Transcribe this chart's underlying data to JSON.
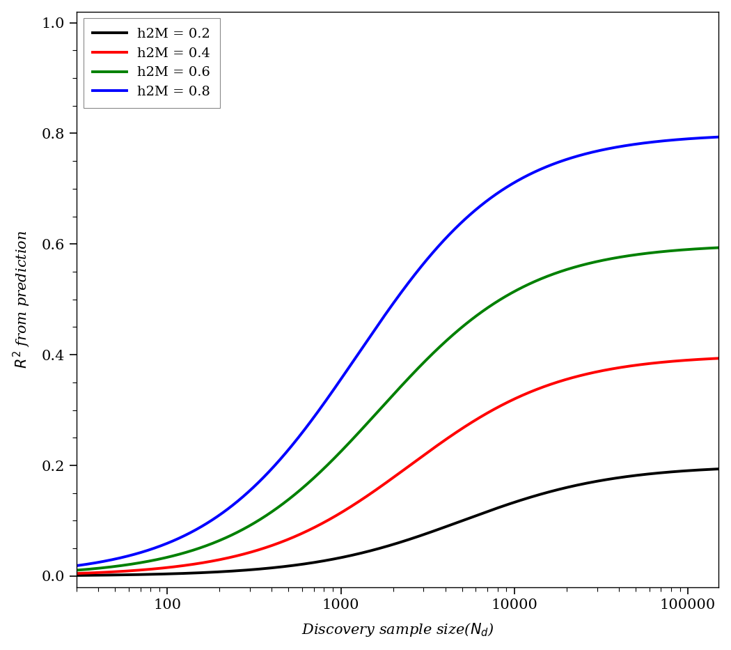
{
  "h2M_values": [
    0.2,
    0.4,
    0.6,
    0.8
  ],
  "colors": [
    "black",
    "red",
    "green",
    "blue"
  ],
  "labels": [
    "h2M = 0.2",
    "h2M = 0.4",
    "h2M = 0.6",
    "h2M = 0.8"
  ],
  "x_min": 30,
  "x_max": 150000,
  "y_min": -0.02,
  "y_max": 1.02,
  "M": 1000,
  "N_points": 1000,
  "line_width": 2.8,
  "yticks": [
    0.0,
    0.2,
    0.4,
    0.6,
    0.8,
    1.0
  ],
  "ytick_labels": [
    "0.0",
    "0.2",
    "0.4",
    "0.6",
    "0.8",
    "1.0"
  ],
  "xticks": [
    100,
    1000,
    10000,
    100000
  ],
  "xtick_labels": [
    "100",
    "1000",
    "10000",
    "100000"
  ],
  "legend_loc": "upper left",
  "background_color": "white",
  "font_size": 15
}
